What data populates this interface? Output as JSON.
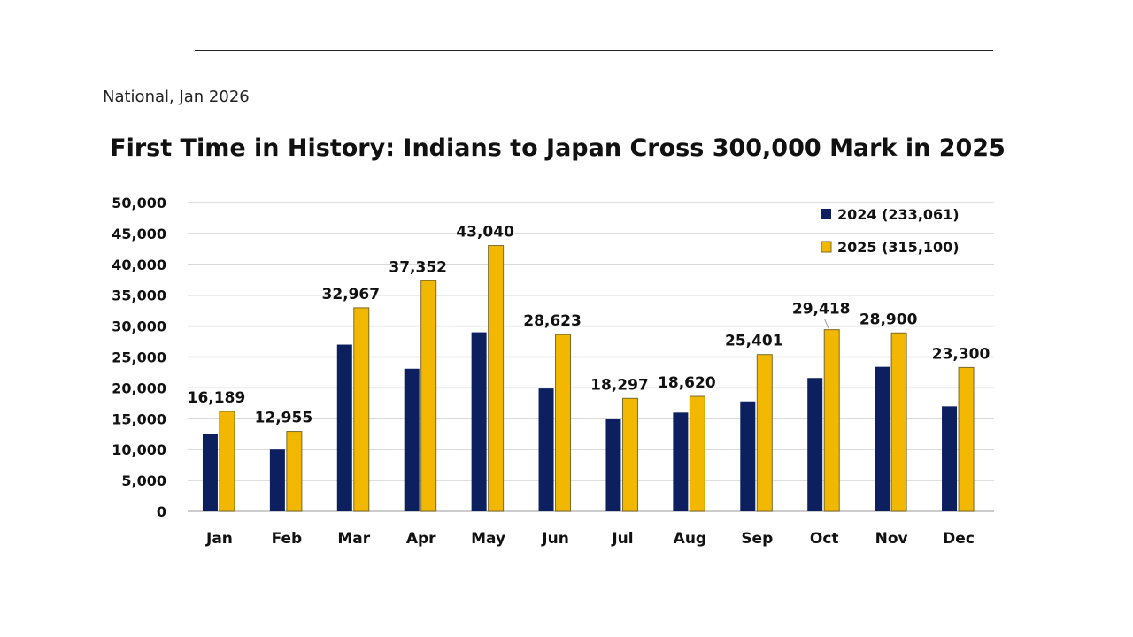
{
  "source_note": "National, Jan 2026",
  "chart_data": {
    "type": "bar",
    "title": "First Time in History: Indians to Japan Cross 300,000 Mark in 2025",
    "xlabel": "",
    "ylabel": "",
    "ylim": [
      0,
      50000
    ],
    "yticks": [
      "0",
      "5,000",
      "10,000",
      "15,000",
      "20,000",
      "25,000",
      "30,000",
      "35,000",
      "40,000",
      "45,000",
      "50,000"
    ],
    "grid": true,
    "legend_position": "top-right",
    "categories": [
      "Jan",
      "Feb",
      "Mar",
      "Apr",
      "May",
      "Jun",
      "Jul",
      "Aug",
      "Sep",
      "Oct",
      "Nov",
      "Dec"
    ],
    "series": [
      {
        "name": "2024 (233,061)",
        "color": "#0c2060",
        "values": [
          12600,
          10000,
          27000,
          23100,
          29000,
          19900,
          14900,
          16000,
          17800,
          21600,
          23400,
          17000
        ],
        "labels": []
      },
      {
        "name": "2025 (315,100)",
        "color": "#f2b800",
        "values": [
          16189,
          12955,
          32967,
          37352,
          43040,
          28623,
          18297,
          18620,
          25401,
          29418,
          28900,
          23300
        ],
        "labels": [
          "16,189",
          "12,955",
          "32,967",
          "37,352",
          "43,040",
          "28,623",
          "18,297",
          "18,620",
          "25,401",
          "29,418",
          "28,900",
          "23,300"
        ]
      }
    ]
  }
}
